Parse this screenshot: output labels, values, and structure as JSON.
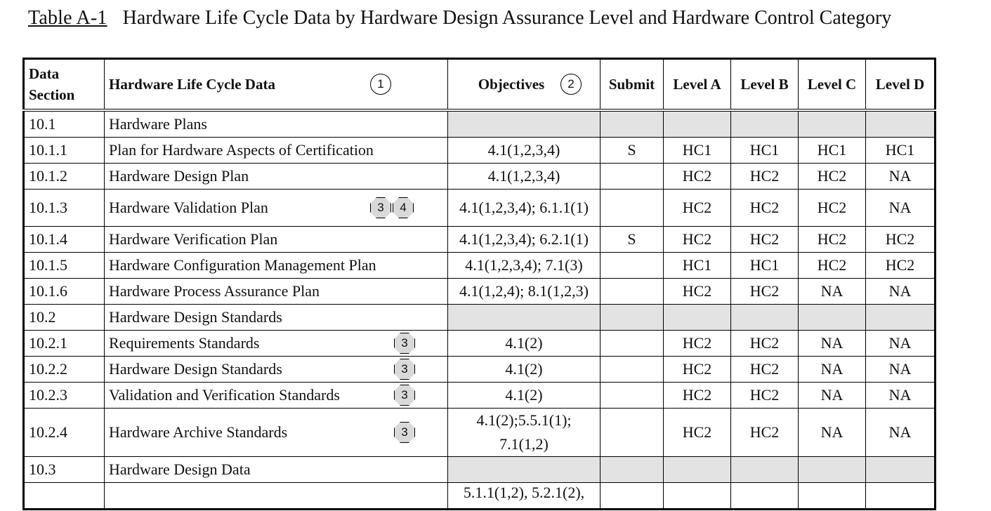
{
  "caption": {
    "label": "Table A-1",
    "text": "Hardware Life Cycle Data by Hardware Design Assurance Level and Hardware Control Category"
  },
  "headers": {
    "data_section": "Data Section",
    "life_cycle_data": "Hardware Life Cycle Data",
    "life_cycle_note": "1",
    "objectives": "Objectives",
    "objectives_note": "2",
    "submit": "Submit",
    "level_a": "Level A",
    "level_b": "Level B",
    "level_c": "Level C",
    "level_d": "Level D"
  },
  "rows": [
    {
      "section": "10.1",
      "data": "Hardware Plans",
      "notes": [],
      "objectives": "",
      "submit": "",
      "a": "",
      "b": "",
      "c": "",
      "d": "",
      "shaded": true
    },
    {
      "section": "10.1.1",
      "data": "Plan for Hardware Aspects of Certification",
      "notes": [],
      "objectives": "4.1(1,2,3,4)",
      "submit": "S",
      "a": "HC1",
      "b": "HC1",
      "c": "HC1",
      "d": "HC1"
    },
    {
      "section": "10.1.2",
      "data": "Hardware Design Plan",
      "notes": [],
      "objectives": "4.1(1,2,3,4)",
      "submit": "",
      "a": "HC2",
      "b": "HC2",
      "c": "HC2",
      "d": "NA"
    },
    {
      "section": "10.1.3",
      "data": "Hardware Validation Plan",
      "notes": [
        "3",
        "4"
      ],
      "objectives": "4.1(1,2,3,4); 6.1.1(1)",
      "submit": "",
      "a": "HC2",
      "b": "HC2",
      "c": "HC2",
      "d": "NA",
      "tall": true
    },
    {
      "section": "10.1.4",
      "data": "Hardware Verification Plan",
      "notes": [],
      "objectives": "4.1(1,2,3,4); 6.2.1(1)",
      "submit": "S",
      "a": "HC2",
      "b": "HC2",
      "c": "HC2",
      "d": "HC2"
    },
    {
      "section": "10.1.5",
      "data": "Hardware Configuration Management Plan",
      "notes": [],
      "objectives": "4.1(1,2,3,4); 7.1(3)",
      "submit": "",
      "a": "HC1",
      "b": "HC1",
      "c": "HC2",
      "d": "HC2"
    },
    {
      "section": "10.1.6",
      "data": "Hardware Process Assurance Plan",
      "notes": [],
      "objectives": "4.1(1,2,4); 8.1(1,2,3)",
      "submit": "",
      "a": "HC2",
      "b": "HC2",
      "c": "NA",
      "d": "NA"
    },
    {
      "section": "10.2",
      "data": "Hardware Design Standards",
      "notes": [],
      "objectives": "",
      "submit": "",
      "a": "",
      "b": "",
      "c": "",
      "d": "",
      "shaded": true
    },
    {
      "section": "10.2.1",
      "data": "Requirements Standards",
      "notes": [
        "3"
      ],
      "objectives": "4.1(2)",
      "submit": "",
      "a": "HC2",
      "b": "HC2",
      "c": "NA",
      "d": "NA"
    },
    {
      "section": "10.2.2",
      "data": "Hardware Design Standards",
      "notes": [
        "3"
      ],
      "objectives": "4.1(2)",
      "submit": "",
      "a": "HC2",
      "b": "HC2",
      "c": "NA",
      "d": "NA"
    },
    {
      "section": "10.2.3",
      "data": "Validation and Verification Standards",
      "notes": [
        "3"
      ],
      "objectives": "4.1(2)",
      "submit": "",
      "a": "HC2",
      "b": "HC2",
      "c": "NA",
      "d": "NA"
    },
    {
      "section": "10.2.4",
      "data": "Hardware Archive Standards",
      "notes": [
        "3"
      ],
      "objectives": "4.1(2);5.5.1(1); 7.1(1,2)",
      "submit": "",
      "a": "HC2",
      "b": "HC2",
      "c": "NA",
      "d": "NA",
      "xtall": true
    },
    {
      "section": "10.3",
      "data": "Hardware Design Data",
      "notes": [],
      "objectives": "",
      "submit": "",
      "a": "",
      "b": "",
      "c": "",
      "d": "",
      "shaded": true
    },
    {
      "section": "",
      "data": "",
      "notes": [],
      "objectives": "5.1.1(1,2), 5.2.1(2),",
      "submit": "",
      "a": "",
      "b": "",
      "c": "",
      "d": "",
      "cut": true
    }
  ]
}
